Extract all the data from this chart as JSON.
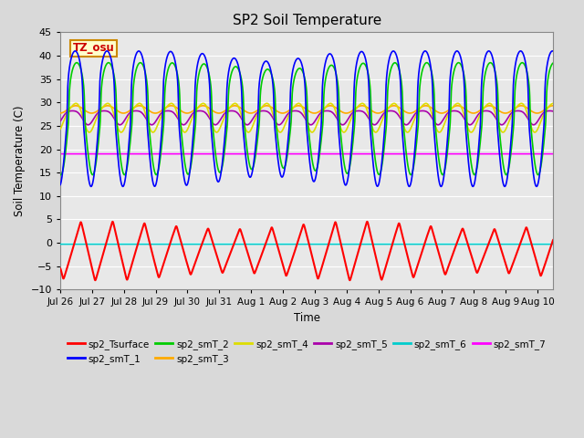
{
  "title": "SP2 Soil Temperature",
  "ylabel": "Soil Temperature (C)",
  "xlabel": "Time",
  "xlim_days": [
    0,
    15.5
  ],
  "ylim": [
    -10,
    45
  ],
  "yticks": [
    -10,
    -5,
    0,
    5,
    10,
    15,
    20,
    25,
    30,
    35,
    40,
    45
  ],
  "xtick_labels": [
    "Jul 26",
    "Jul 27",
    "Jul 28",
    "Jul 29",
    "Jul 30",
    "Jul 31",
    "Aug 1",
    "Aug 2",
    "Aug 3",
    "Aug 4",
    "Aug 5",
    "Aug 6",
    "Aug 7",
    "Aug 8",
    "Aug 9",
    "Aug 10"
  ],
  "xtick_positions": [
    0,
    1,
    2,
    3,
    4,
    5,
    6,
    7,
    8,
    9,
    10,
    11,
    12,
    13,
    14,
    15
  ],
  "annotation_text": "TZ_osu",
  "annotation_color": "#cc0000",
  "annotation_bg": "#ffffcc",
  "annotation_border": "#cc8800",
  "colors": {
    "sp2_Tsurface": "#ff0000",
    "sp2_smT_1": "#0000ff",
    "sp2_smT_2": "#00cc00",
    "sp2_smT_3": "#ffaa00",
    "sp2_smT_4": "#dddd00",
    "sp2_smT_5": "#aa00aa",
    "sp2_smT_6": "#00cccc",
    "sp2_smT_7": "#ff00ff"
  },
  "bg_color": "#d9d9d9",
  "plot_bg_color": "#e8e8e8",
  "grid_color": "#ffffff",
  "linewidth": 1.2
}
